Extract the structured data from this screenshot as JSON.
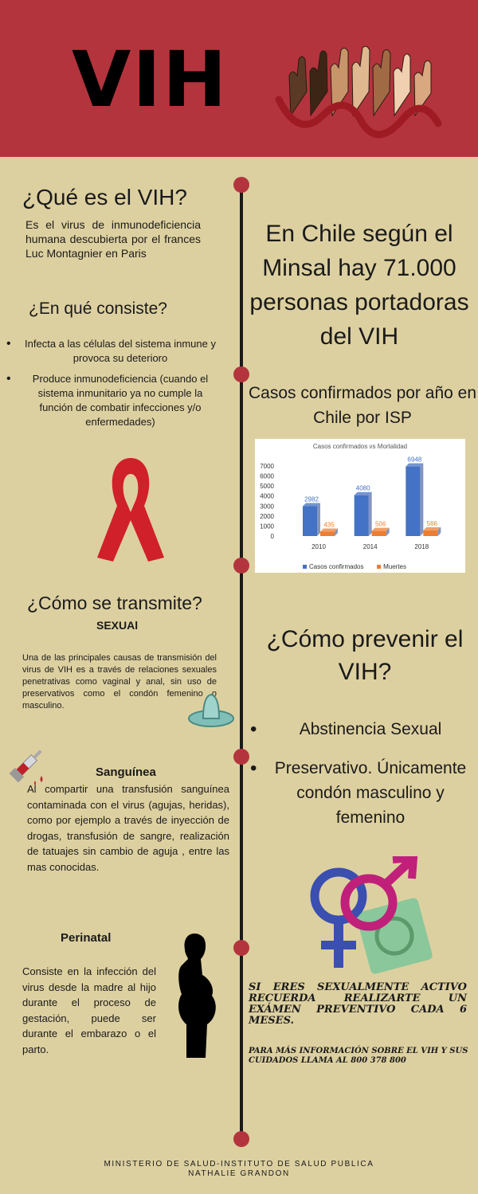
{
  "header": {
    "title": "VIH",
    "bg_color": "#b4343e"
  },
  "left": {
    "que_es": {
      "title": "¿Qué es el VIH?",
      "body": "Es el virus de inmunodeficiencia humana descubierta por el frances Luc Montagnier en Paris"
    },
    "consiste": {
      "title": "¿En qué consiste?",
      "items": [
        "Infecta a las células del sistema inmune y provoca su deterioro",
        "Produce inmunodeficiencia (cuando el sistema inmunitario ya no cumple la función de combatir infecciones y/o enfermedades)"
      ]
    },
    "transmite": {
      "title": "¿Cómo se transmite?",
      "sexual": {
        "label": "SEXUAl",
        "body": "Una de las principales causas de transmisión del virus de VIH es a través de relaciones sexuales penetrativas como vaginal y anal, sin uso de preservativos como el condón femenino o masculino."
      },
      "sanguinea": {
        "label": "Sanguínea",
        "body": "Al compartir una transfusión sanguínea contaminada con el virus (agujas, heridas), como por ejemplo a través de inyección de drogas, transfusión de sangre, realización de tatuajes sin cambio de aguja , entre las mas conocidas."
      },
      "perinatal": {
        "label": "Perinatal",
        "body": "Consiste en la infección del virus desde la madre al hijo durante el proceso de gestación, puede ser durante el embarazo o el parto."
      }
    }
  },
  "right": {
    "stat": "En Chile según el Minsal hay 71.000 personas portadoras del VIH",
    "casos_title": "Casos confirmados por año en Chile por ISP",
    "prevenir": {
      "title": "¿Cómo prevenir el VIH?",
      "items": [
        "Abstinencia Sexual",
        "Preservativo. Únicamente condón masculino y femenino"
      ]
    },
    "warning": "SI ERES SEXUALMENTE ACTIVO RECUERDA REALIZARTE UN EXÁMEN PREVENTIVO CADA 6 MESES.",
    "info": "PARA MÁS INFORMACIÓN SOBRE EL VIH Y SUS CUIDADOS LLAMA AL 800 378 800"
  },
  "chart_data": {
    "type": "bar",
    "title": "Casos confirmados vs Mortalidad",
    "categories": [
      "2010",
      "2014",
      "2018"
    ],
    "series": [
      {
        "name": "Casos confirmados",
        "values": [
          2982,
          4080,
          6948
        ],
        "color": "#4472c4"
      },
      {
        "name": "Muertes",
        "values": [
          435,
          506,
          566
        ],
        "color": "#ed7d31"
      }
    ],
    "ylim": [
      0,
      7000
    ],
    "yticks": [
      "0",
      "1000",
      "2000",
      "3000",
      "4000",
      "5000",
      "6000",
      "7000"
    ],
    "legend": "bottom"
  },
  "footer": {
    "line1": "MINISTERIO DE SALUD-INSTITUTO DE SALUD PUBLICA",
    "line2": "NATHALIE GRANDON"
  },
  "icons": [
    "hands-ribbon-icon",
    "red-ribbon-icon",
    "condom-icon",
    "syringe-icon",
    "pregnant-woman-icon",
    "gender-symbols-icon"
  ]
}
